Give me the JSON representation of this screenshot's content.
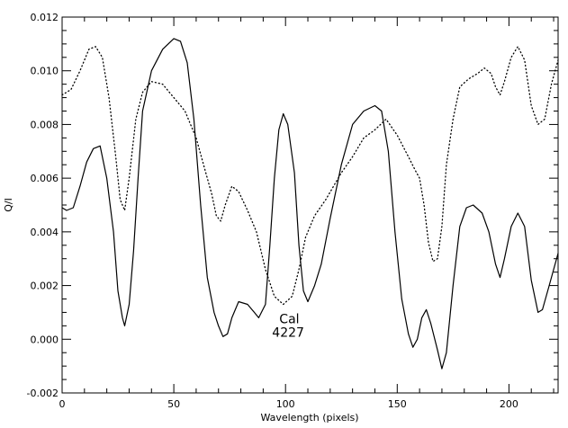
{
  "chart_data": {
    "type": "line",
    "xlabel": "Wavelength (pixels)",
    "ylabel": "Q/I",
    "xlim": [
      0,
      222
    ],
    "ylim": [
      -0.002,
      0.012
    ],
    "x_ticks": [
      0,
      50,
      100,
      150,
      200
    ],
    "y_ticks": [
      -0.002,
      0.0,
      0.002,
      0.004,
      0.006,
      0.008,
      0.01,
      0.012
    ],
    "x_tick_labels": [
      "0",
      "50",
      "100",
      "150",
      "200"
    ],
    "y_tick_labels": [
      "-0.002",
      "0.000",
      "0.002",
      "0.004",
      "0.006",
      "0.008",
      "0.010",
      "0.012"
    ],
    "annotation": {
      "lines": [
        "Cal",
        "4227"
      ],
      "x": 94,
      "y": 0.0006
    },
    "series": [
      {
        "style": "solid",
        "color": "#000000",
        "points": [
          [
            0,
            0.0049
          ],
          [
            2,
            0.0048
          ],
          [
            5,
            0.0049
          ],
          [
            8,
            0.0057
          ],
          [
            11,
            0.0066
          ],
          [
            14,
            0.0071
          ],
          [
            17,
            0.0072
          ],
          [
            20,
            0.006
          ],
          [
            23,
            0.004
          ],
          [
            25,
            0.0018
          ],
          [
            27,
            0.0008
          ],
          [
            28,
            0.0005
          ],
          [
            30,
            0.0013
          ],
          [
            32,
            0.0033
          ],
          [
            34,
            0.006
          ],
          [
            36,
            0.0085
          ],
          [
            40,
            0.01
          ],
          [
            45,
            0.0108
          ],
          [
            50,
            0.0112
          ],
          [
            53,
            0.0111
          ],
          [
            56,
            0.0103
          ],
          [
            59,
            0.0082
          ],
          [
            62,
            0.005
          ],
          [
            65,
            0.0023
          ],
          [
            68,
            0.001
          ],
          [
            70,
            0.0005
          ],
          [
            72,
            0.0001
          ],
          [
            74,
            0.0002
          ],
          [
            76,
            0.0008
          ],
          [
            79,
            0.0014
          ],
          [
            83,
            0.0013
          ],
          [
            86,
            0.001
          ],
          [
            88,
            0.0008
          ],
          [
            91,
            0.0013
          ],
          [
            93,
            0.0035
          ],
          [
            95,
            0.006
          ],
          [
            97,
            0.0078
          ],
          [
            99,
            0.0084
          ],
          [
            101,
            0.008
          ],
          [
            104,
            0.0062
          ],
          [
            106,
            0.0035
          ],
          [
            108,
            0.0018
          ],
          [
            110,
            0.0014
          ],
          [
            113,
            0.002
          ],
          [
            116,
            0.0028
          ],
          [
            120,
            0.0045
          ],
          [
            125,
            0.0065
          ],
          [
            130,
            0.008
          ],
          [
            135,
            0.0085
          ],
          [
            140,
            0.0087
          ],
          [
            143,
            0.0085
          ],
          [
            146,
            0.007
          ],
          [
            149,
            0.004
          ],
          [
            152,
            0.0015
          ],
          [
            155,
            0.0002
          ],
          [
            157,
            -0.0003
          ],
          [
            159,
            0.0
          ],
          [
            161,
            0.0008
          ],
          [
            163,
            0.0011
          ],
          [
            165,
            0.0006
          ],
          [
            168,
            -0.0004
          ],
          [
            170,
            -0.0011
          ],
          [
            172,
            -0.0005
          ],
          [
            175,
            0.002
          ],
          [
            178,
            0.0042
          ],
          [
            181,
            0.0049
          ],
          [
            184,
            0.005
          ],
          [
            188,
            0.0047
          ],
          [
            191,
            0.004
          ],
          [
            194,
            0.0028
          ],
          [
            196,
            0.0023
          ],
          [
            198,
            0.003
          ],
          [
            201,
            0.0042
          ],
          [
            204,
            0.0047
          ],
          [
            207,
            0.0042
          ],
          [
            210,
            0.0022
          ],
          [
            213,
            0.001
          ],
          [
            215,
            0.0011
          ],
          [
            218,
            0.002
          ],
          [
            222,
            0.0032
          ]
        ]
      },
      {
        "style": "dotted",
        "color": "#000000",
        "points": [
          [
            0,
            0.0091
          ],
          [
            4,
            0.0093
          ],
          [
            8,
            0.01
          ],
          [
            12,
            0.0108
          ],
          [
            15,
            0.0109
          ],
          [
            18,
            0.0105
          ],
          [
            21,
            0.009
          ],
          [
            24,
            0.0068
          ],
          [
            26,
            0.0052
          ],
          [
            28,
            0.0048
          ],
          [
            30,
            0.006
          ],
          [
            33,
            0.0082
          ],
          [
            36,
            0.0092
          ],
          [
            40,
            0.0096
          ],
          [
            45,
            0.0095
          ],
          [
            50,
            0.009
          ],
          [
            55,
            0.0085
          ],
          [
            60,
            0.0075
          ],
          [
            64,
            0.0063
          ],
          [
            67,
            0.0054
          ],
          [
            69,
            0.0046
          ],
          [
            71,
            0.0044
          ],
          [
            73,
            0.005
          ],
          [
            76,
            0.0057
          ],
          [
            79,
            0.0055
          ],
          [
            83,
            0.0048
          ],
          [
            87,
            0.004
          ],
          [
            91,
            0.0026
          ],
          [
            95,
            0.0016
          ],
          [
            99,
            0.0013
          ],
          [
            103,
            0.0016
          ],
          [
            106,
            0.0026
          ],
          [
            109,
            0.0038
          ],
          [
            113,
            0.0046
          ],
          [
            118,
            0.0052
          ],
          [
            125,
            0.0062
          ],
          [
            130,
            0.0068
          ],
          [
            135,
            0.0075
          ],
          [
            140,
            0.0078
          ],
          [
            145,
            0.0082
          ],
          [
            150,
            0.0076
          ],
          [
            155,
            0.0068
          ],
          [
            158,
            0.0063
          ],
          [
            160,
            0.006
          ],
          [
            162,
            0.005
          ],
          [
            164,
            0.0036
          ],
          [
            166,
            0.0029
          ],
          [
            168,
            0.003
          ],
          [
            170,
            0.0042
          ],
          [
            172,
            0.0065
          ],
          [
            175,
            0.0082
          ],
          [
            178,
            0.0094
          ],
          [
            182,
            0.0097
          ],
          [
            186,
            0.0099
          ],
          [
            189,
            0.0101
          ],
          [
            192,
            0.0099
          ],
          [
            194,
            0.0094
          ],
          [
            196,
            0.0091
          ],
          [
            198,
            0.0096
          ],
          [
            201,
            0.0105
          ],
          [
            204,
            0.0109
          ],
          [
            207,
            0.0104
          ],
          [
            210,
            0.0087
          ],
          [
            213,
            0.008
          ],
          [
            216,
            0.0082
          ],
          [
            219,
            0.0095
          ],
          [
            222,
            0.0104
          ]
        ]
      }
    ]
  }
}
